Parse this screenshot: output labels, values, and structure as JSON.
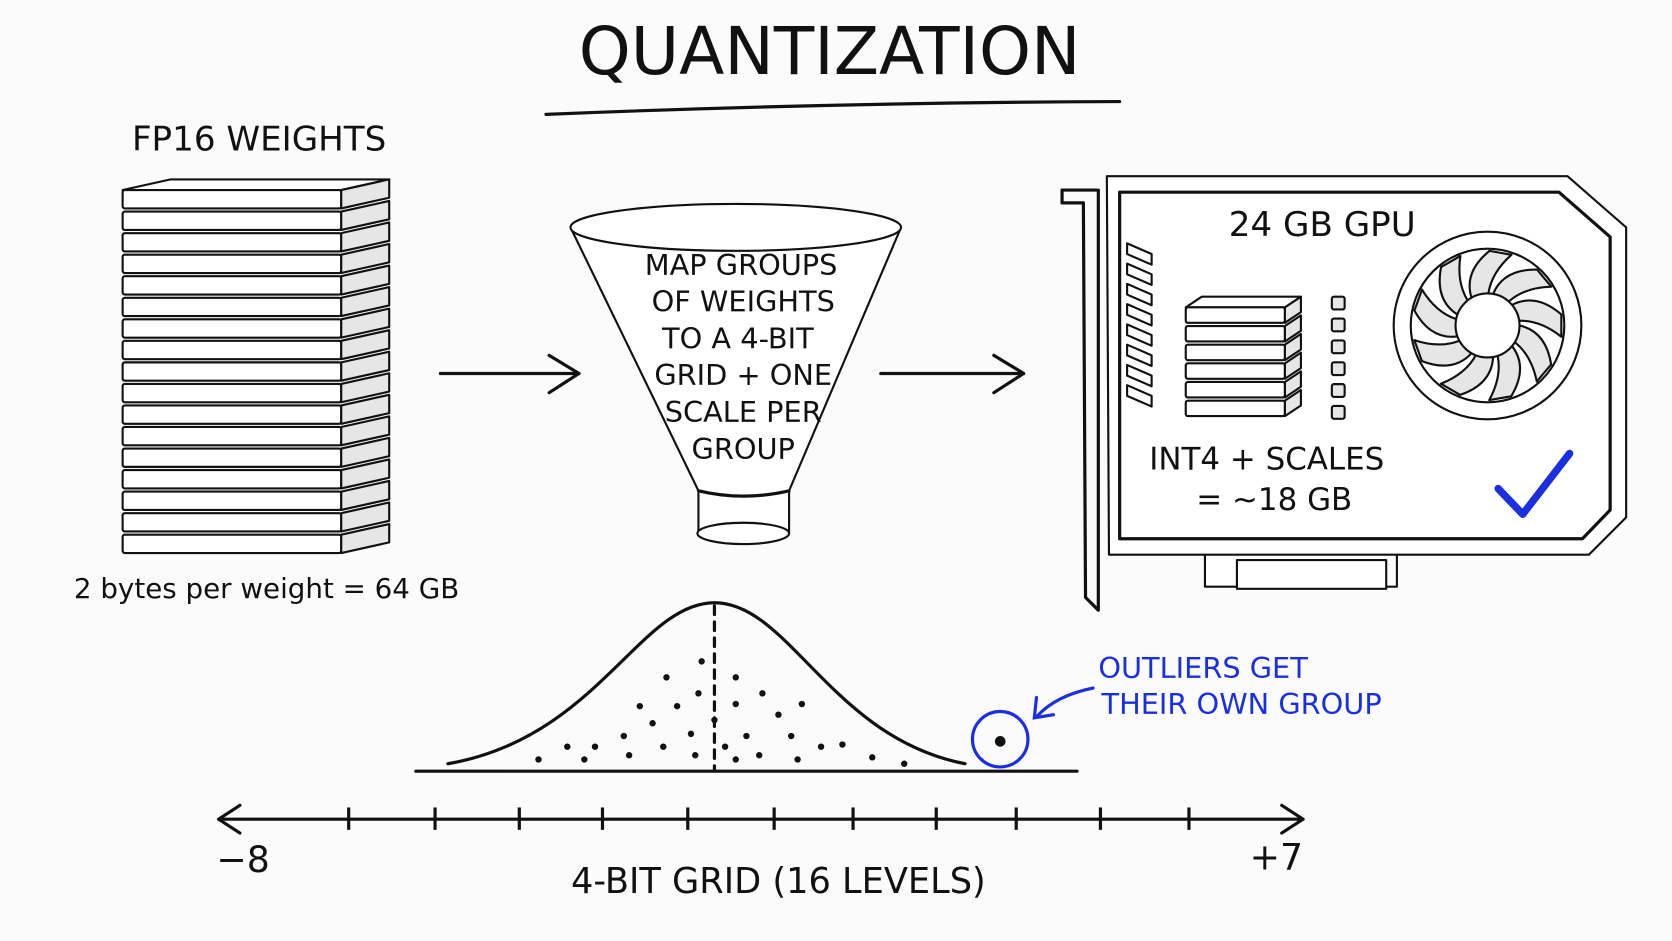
{
  "title": "QUANTIZATION",
  "weights": {
    "label": "FP16 WEIGHTS",
    "caption": "2 bytes per weight = 64 GB"
  },
  "funnel": {
    "lines": [
      "MAP GROUPS",
      "OF WEIGHTS",
      "TO A 4-BIT",
      "GRID + ONE",
      "SCALE PER",
      "GROUP"
    ]
  },
  "gpu": {
    "label": "24 GB GPU",
    "lines": [
      "INT4 + SCALES",
      "= ~18 GB"
    ]
  },
  "outliers": {
    "lines": [
      "OUTLIERS GET",
      "THEIR OWN GROUP"
    ]
  },
  "grid": {
    "min_label": "−8",
    "max_label": "+7",
    "label": "4-BIT GRID (16 LEVELS)"
  }
}
